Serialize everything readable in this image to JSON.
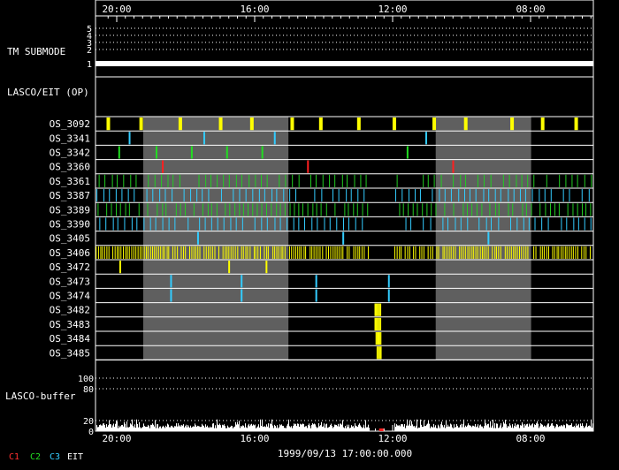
{
  "chart_data": {
    "type": "timeline",
    "time_axis": {
      "direction": "right-to-left",
      "tick_labels": [
        "20:00",
        "16:00",
        "12:00",
        "08:00"
      ],
      "minor_ticks_per_major": 16
    },
    "date_label": "1999/09/13 17:00:00.000",
    "tm_submode": {
      "label": "TM SUBMODE",
      "levels": [
        "5",
        "4",
        "3",
        "2",
        "1"
      ],
      "active_level": "1"
    },
    "lasco_eit_op_label": "LASCO/EIT (OP)",
    "shaded_periods_hours_from_left": [
      [
        2.3,
        9.3
      ],
      [
        16.4,
        21
      ]
    ],
    "programs": [
      {
        "name": "OS_3092",
        "color": "#ffff00",
        "pattern": "periodic",
        "period_h": 1.75,
        "offset_h": 0.5
      },
      {
        "name": "OS_3341",
        "color": "#33ccff",
        "pattern": "list",
        "times_h": [
          1.6,
          5.2,
          8.6,
          15.9
        ]
      },
      {
        "name": "OS_3342",
        "color": "#22dd22",
        "pattern": "list",
        "times_h": [
          1.1,
          2.9,
          4.6,
          6.3,
          8.0,
          15.0
        ]
      },
      {
        "name": "OS_3360",
        "color": "#ff2020",
        "pattern": "list",
        "times_h": [
          3.2,
          10.2,
          17.2
        ]
      },
      {
        "name": "OS_3361",
        "color": "#22cc22",
        "pattern": "periodic",
        "period_h": 0.3,
        "offset_h": 0.15
      },
      {
        "name": "OS_3387",
        "color": "#33ccff",
        "pattern": "periodic",
        "period_h": 0.3,
        "offset_h": 0.05
      },
      {
        "name": "OS_3389",
        "color": "#22cc22",
        "pattern": "periodic",
        "period_h": 0.22,
        "offset_h": 0.1
      },
      {
        "name": "OS_3390",
        "color": "#33ccff",
        "pattern": "periodic",
        "period_h": 0.3,
        "offset_h": 0.2
      },
      {
        "name": "OS_3405",
        "color": "#33ccff",
        "pattern": "list",
        "times_h": [
          4.9,
          11.9,
          18.9
        ]
      },
      {
        "name": "OS_3406",
        "color": "#ffff00",
        "pattern": "periodic",
        "period_h": 0.1,
        "offset_h": 0.02
      },
      {
        "name": "OS_3472",
        "color": "#ffff00",
        "pattern": "list",
        "times_h": [
          1.15,
          6.4,
          8.2
        ]
      },
      {
        "name": "OS_3473",
        "color": "#33ccff",
        "pattern": "list",
        "times_h": [
          3.6,
          7.0,
          10.6,
          14.1
        ]
      },
      {
        "name": "OS_3474",
        "color": "#33ccff",
        "pattern": "list",
        "times_h": [
          3.6,
          7.0,
          10.6,
          14.1
        ]
      },
      {
        "name": "OS_3482",
        "color": "#ffff00",
        "pattern": "burst",
        "start_h": 13.45,
        "end_h": 13.75
      },
      {
        "name": "OS_3483",
        "color": "#ffff00",
        "pattern": "burst",
        "start_h": 13.45,
        "end_h": 13.75
      },
      {
        "name": "OS_3484",
        "color": "#ffff00",
        "pattern": "burst",
        "start_h": 13.5,
        "end_h": 13.75
      },
      {
        "name": "OS_3485",
        "color": "#ffff00",
        "pattern": "burst",
        "start_h": 13.55,
        "end_h": 13.75
      }
    ],
    "buffer": {
      "label": "LASCO-buffer",
      "tick_labels": [
        "100",
        "80",
        "20",
        "0"
      ],
      "ylim": [
        0,
        100
      ],
      "typical_level": 12,
      "max_level": 22,
      "gap_hours_from_left": [
        13.2,
        14.4
      ]
    },
    "legend": [
      {
        "label": "C1",
        "color": "#ff3030"
      },
      {
        "label": "C2",
        "color": "#22dd22"
      },
      {
        "label": "C3",
        "color": "#33ccff"
      },
      {
        "label": "EIT",
        "color": "#ffffff"
      }
    ]
  }
}
